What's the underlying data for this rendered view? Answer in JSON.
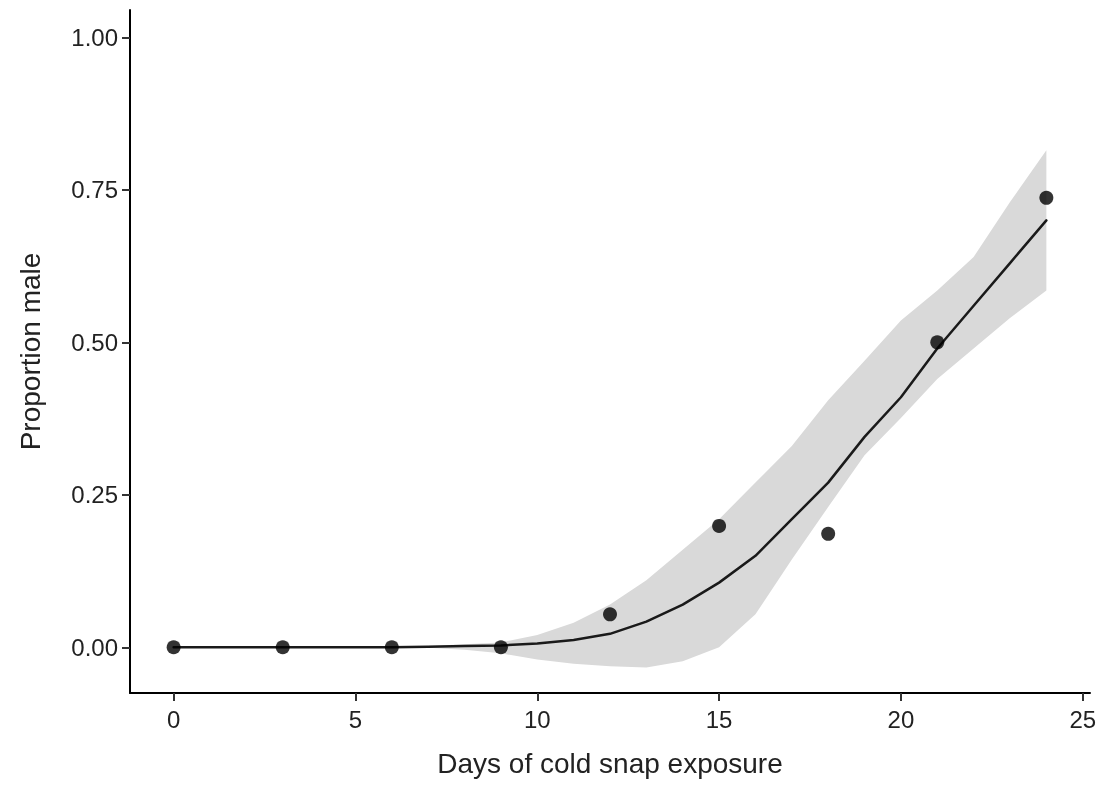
{
  "chart_data": {
    "type": "scatter",
    "xlabel": "Days of cold snap exposure",
    "ylabel": "Proportion male",
    "xlim": [
      -1.2,
      25.2
    ],
    "ylim": [
      -0.075,
      1.045
    ],
    "xticks": [
      0,
      5,
      10,
      15,
      20,
      25
    ],
    "yticks": [
      {
        "value": 0,
        "label": "0.00"
      },
      0.25,
      {
        "value": 0.5,
        "label": "0.50"
      },
      0.75,
      {
        "value": 1,
        "label": "1.00"
      }
    ],
    "grid": false,
    "series": [
      {
        "type": "line",
        "color": "#1a1a1a",
        "line_style": "solid",
        "marker": "none",
        "x": [
          0,
          2,
          4,
          6,
          7,
          8,
          9,
          10,
          11,
          12,
          13,
          14,
          15,
          16,
          17,
          18,
          19,
          20,
          21,
          22,
          23,
          24
        ],
        "values": [
          0,
          0,
          0,
          0,
          0.001,
          0.002,
          0.003,
          0.006,
          0.012,
          0.022,
          0.042,
          0.07,
          0.106,
          0.15,
          0.21,
          0.27,
          0.345,
          0.41,
          0.49,
          0.56,
          0.63,
          0.7
        ],
        "lower": [
          0,
          0,
          0,
          0,
          -0.001,
          -0.004,
          -0.01,
          -0.02,
          -0.027,
          -0.031,
          -0.033,
          -0.023,
          0,
          0.054,
          0.144,
          0.23,
          0.315,
          0.376,
          0.44,
          0.49,
          0.54,
          0.585
        ],
        "upper": [
          0,
          0,
          0,
          0,
          0.002,
          0.005,
          0.008,
          0.02,
          0.04,
          0.07,
          0.11,
          0.16,
          0.21,
          0.27,
          0.33,
          0.405,
          0.47,
          0.536,
          0.585,
          0.64,
          0.73,
          0.815
        ]
      },
      {
        "color": "#000000",
        "marker": "circle",
        "x": [
          0,
          3,
          6,
          9,
          12,
          15,
          18,
          21,
          24
        ],
        "values": [
          0,
          0,
          0,
          0,
          0.054,
          0.199,
          0.186,
          0.5,
          0.737
        ]
      }
    ]
  }
}
